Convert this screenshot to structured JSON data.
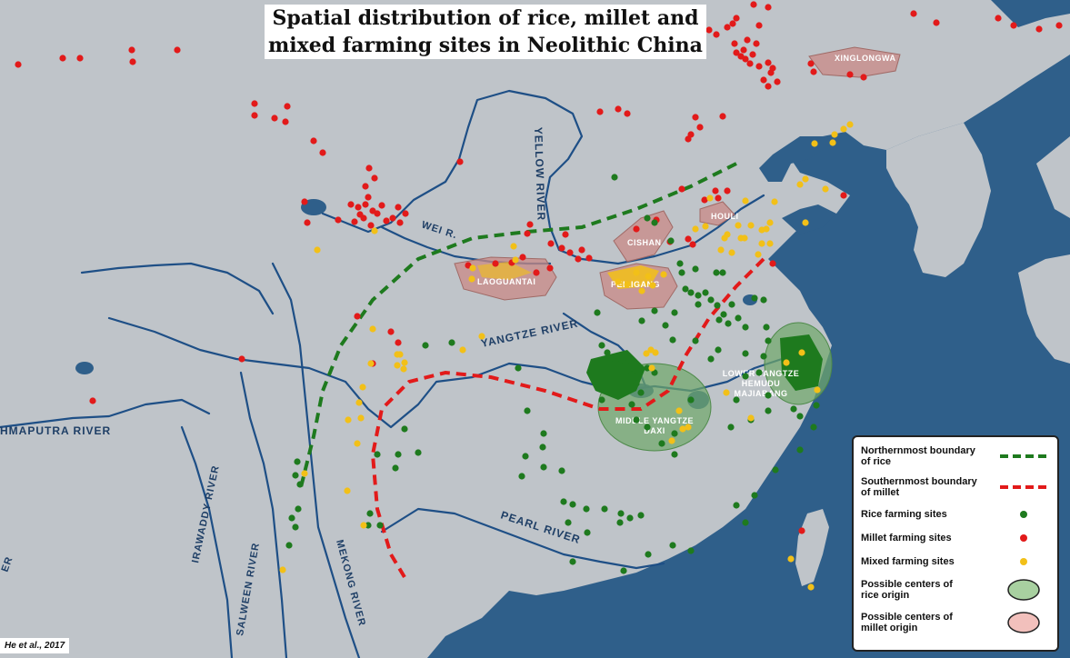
{
  "title": {
    "line1": "Spatial distribution of rice, millet and",
    "line2": "mixed farming sites in Neolithic China"
  },
  "colors": {
    "sea": "#2f5f8a",
    "land": "#bfc4c9",
    "river": "#1e4f86",
    "rice": "#1e7a1e",
    "millet": "#e21a1a",
    "mixed": "#f2c018",
    "rice_center": "#6fa86a",
    "millet_center": "#c98a86",
    "rice_boundary": "#1e7a1e",
    "millet_boundary": "#e21a1a"
  },
  "rivers": {
    "yellow": "YELLOW RIVER",
    "wei": "WEI R.",
    "yangtze": "YANGTZE RIVER",
    "pearl": "PEARL RIVER",
    "brahmaputra": "HMAPUTRA RIVER",
    "irawaddy": "IRAWADDY RIVER",
    "salween": "SALWEEN RIVER",
    "mekong": "MEKONG RIVER",
    "edge": "ER"
  },
  "regions": {
    "xinglongwa": "XINGLONGWA",
    "houli": "HOULI",
    "cishan": "CISHAN",
    "peiligang": "PEILIGANG",
    "laoguantai": "LAOGUANTAI",
    "lower_yangtze": [
      "LOWER YANGTZE",
      "HEMUDU",
      "MAJIABANG"
    ],
    "middle_yangtze": [
      "MIDDLE YANGTZE",
      "DAXI"
    ]
  },
  "legend": {
    "rice_boundary": [
      "Northernmost boundary",
      "of rice"
    ],
    "millet_boundary": [
      "Southernmost boundary",
      "of millet"
    ],
    "rice_sites": "Rice farming sites",
    "millet_sites": "Millet farming sites",
    "mixed_sites": "Mixed farming sites",
    "rice_origin": [
      "Possible centers of",
      "rice origin"
    ],
    "millet_origin": [
      "Possible centers of",
      "millet origin"
    ]
  },
  "credit": "He et al., 2017"
}
